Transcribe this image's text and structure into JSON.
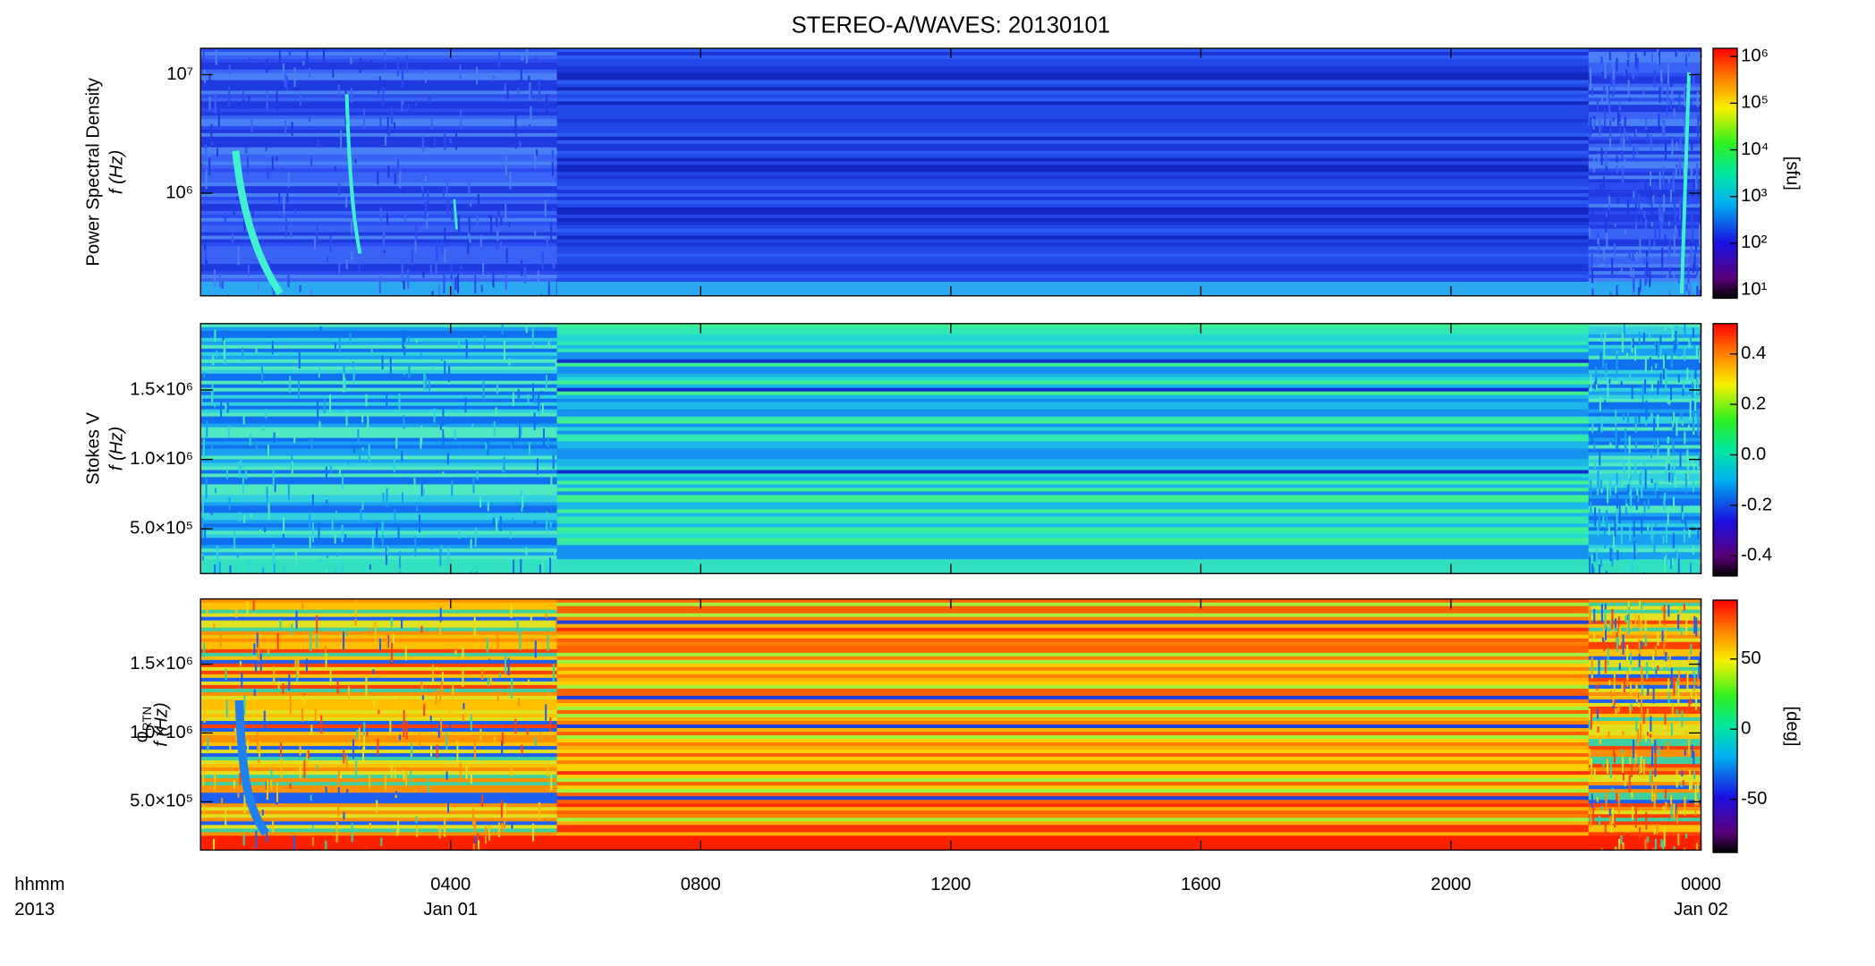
{
  "title": "STEREO-A/WAVES: 20130101",
  "x_axis": {
    "xlim": [
      0,
      24
    ],
    "xticks": [
      {
        "value": 4,
        "label": "0400"
      },
      {
        "value": 8,
        "label": "0800"
      },
      {
        "value": 12,
        "label": "1200"
      },
      {
        "value": 16,
        "label": "1600"
      },
      {
        "value": 20,
        "label": "2000"
      },
      {
        "value": 24,
        "label": "0000"
      }
    ],
    "xtick_dates": [
      {
        "value": 4,
        "label": "Jan 01"
      },
      {
        "value": 24,
        "label": "Jan 02"
      }
    ],
    "format_label": "hhmm",
    "year_label": "2013"
  },
  "chart_data": [
    {
      "type": "heatmap",
      "ylabel": "Power Spectral Density",
      "ylabel2": "f (Hz)",
      "yscale": "log",
      "ylim": [
        136000,
        16700000
      ],
      "yticks": [
        {
          "value": 1000000,
          "label": "10⁶"
        },
        {
          "value": 10000000,
          "label": "10⁷"
        }
      ],
      "colorbar": {
        "scale": "log",
        "lim": [
          6.6,
          1500000
        ],
        "label": "[sfu]",
        "ticks": [
          {
            "value": 10,
            "label": "10¹"
          },
          {
            "value": 100,
            "label": "10²"
          },
          {
            "value": 1000,
            "label": "10³"
          },
          {
            "value": 10000,
            "label": "10⁴"
          },
          {
            "value": 100000,
            "label": "10⁵"
          },
          {
            "value": 1000000,
            "label": "10⁶"
          }
        ]
      }
    },
    {
      "type": "heatmap",
      "ylabel": "Stokes V",
      "ylabel2": "f (Hz)",
      "yscale": "linear",
      "ylim": [
        178000,
        1978000
      ],
      "yticks": [
        {
          "value": 500000,
          "label": "5.0×10⁵"
        },
        {
          "value": 1000000,
          "label": "1.0×10⁶"
        },
        {
          "value": 1500000,
          "label": "1.5×10⁶"
        }
      ],
      "colorbar": {
        "scale": "linear",
        "lim": [
          -0.48,
          0.52
        ],
        "ticks": [
          -0.4,
          -0.2,
          {
            "value": 0,
            "label": "0.0"
          },
          0.2,
          0.4
        ]
      }
    },
    {
      "type": "heatmap",
      "ylabel": "φ",
      "ylabel_sub": "RTN",
      "ylabel2": "f (Hz)",
      "yscale": "linear",
      "ylim": [
        149000,
        1974000
      ],
      "yticks": [
        {
          "value": 500000,
          "label": "5.0×10⁵"
        },
        {
          "value": 1000000,
          "label": "1.0×10⁶"
        },
        {
          "value": 1500000,
          "label": "1.5×10⁶"
        }
      ],
      "colorbar": {
        "scale": "linear",
        "lim": [
          -88,
          92
        ],
        "label": "[deg]",
        "ticks": [
          -50,
          0,
          50
        ]
      }
    }
  ]
}
